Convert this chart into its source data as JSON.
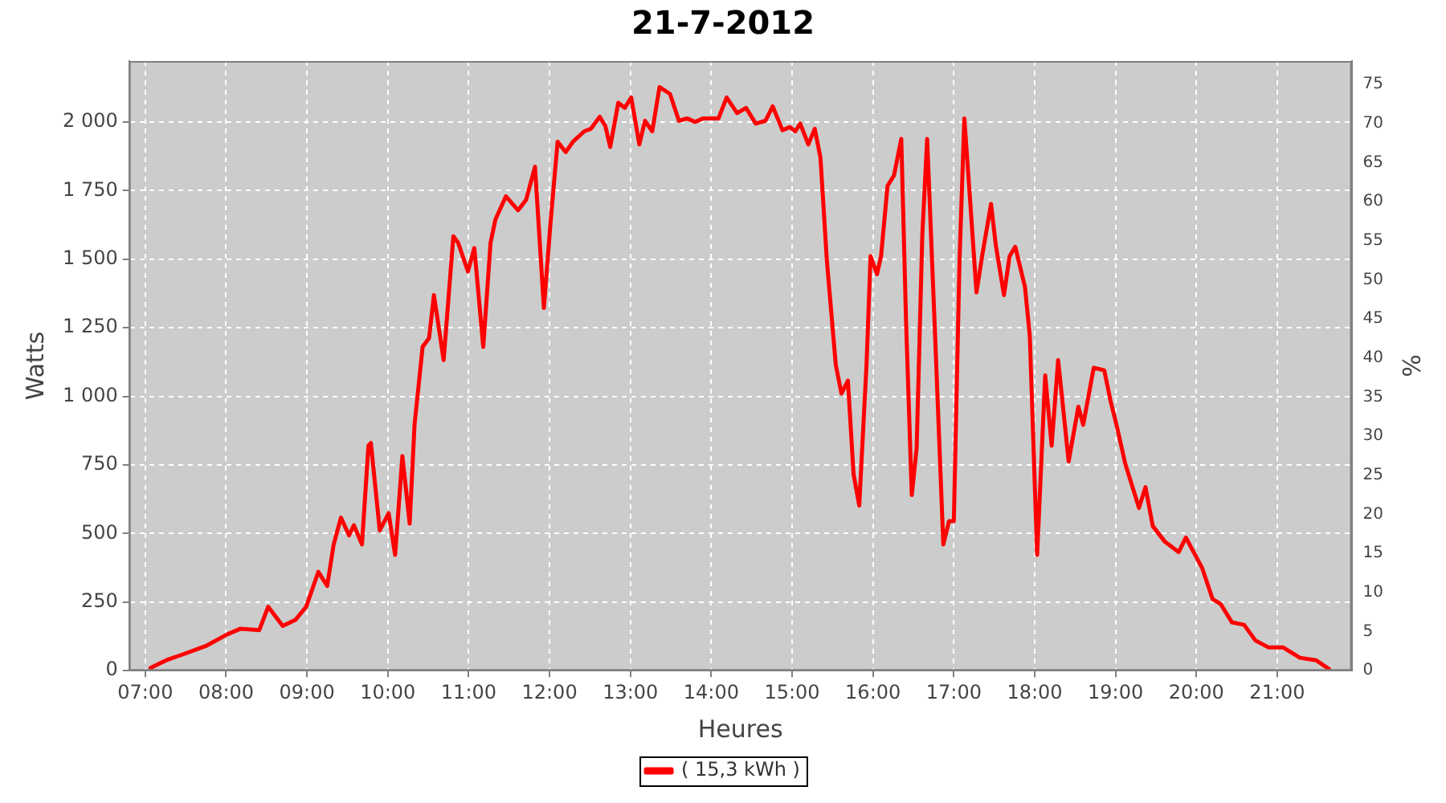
{
  "chart_data": {
    "type": "line",
    "title": "21-7-2012",
    "xlabel": "Heures",
    "ylabel": "Watts",
    "y2label": "%",
    "xlim": [
      6.8,
      21.92
    ],
    "xticks": [
      {
        "value": 7,
        "label": "07:00"
      },
      {
        "value": 8,
        "label": "08:00"
      },
      {
        "value": 9,
        "label": "09:00"
      },
      {
        "value": 10,
        "label": "10:00"
      },
      {
        "value": 11,
        "label": "11:00"
      },
      {
        "value": 12,
        "label": "12:00"
      },
      {
        "value": 13,
        "label": "13:00"
      },
      {
        "value": 14,
        "label": "14:00"
      },
      {
        "value": 15,
        "label": "15:00"
      },
      {
        "value": 16,
        "label": "16:00"
      },
      {
        "value": 17,
        "label": "17:00"
      },
      {
        "value": 18,
        "label": "18:00"
      },
      {
        "value": 19,
        "label": "19:00"
      },
      {
        "value": 20,
        "label": "20:00"
      },
      {
        "value": 21,
        "label": "21:00"
      }
    ],
    "ylim": [
      0,
      2222
    ],
    "yticks": [
      0,
      250,
      500,
      750,
      {
        "value": 1000,
        "label": "1 000"
      },
      {
        "value": 1250,
        "label": "1 250"
      },
      {
        "value": 1500,
        "label": "1 500"
      },
      {
        "value": 1750,
        "label": "1 750"
      },
      {
        "value": 2000,
        "label": "2 000"
      }
    ],
    "y2lim": [
      0,
      78
    ],
    "y2ticks": [
      0,
      5,
      10,
      15,
      20,
      25,
      30,
      35,
      40,
      45,
      50,
      55,
      60,
      65,
      70,
      75
    ],
    "grid": true,
    "legend": "bottom",
    "marker": "none",
    "line_style": "solid",
    "series": [
      {
        "name": "( 15,3 kWh )",
        "color": "#ff0000",
        "x": [
          7.065,
          7.26,
          7.49,
          7.75,
          8.01,
          8.18,
          8.41,
          8.52,
          8.7,
          8.86,
          8.99,
          9.14,
          9.25,
          9.33,
          9.42,
          9.52,
          9.58,
          9.68,
          9.76,
          9.79,
          9.9,
          10.01,
          10.09,
          10.18,
          10.27,
          10.33,
          10.43,
          10.51,
          10.57,
          10.69,
          10.81,
          10.87,
          10.99,
          11.07,
          11.18,
          11.27,
          11.33,
          11.46,
          11.61,
          11.71,
          11.82,
          11.93,
          12.01,
          12.06,
          12.1,
          12.2,
          12.29,
          12.43,
          12.51,
          12.62,
          12.69,
          12.75,
          12.85,
          12.93,
          13.01,
          13.11,
          13.18,
          13.27,
          13.36,
          13.49,
          13.6,
          13.7,
          13.8,
          13.9,
          14.09,
          14.19,
          14.32,
          14.43,
          14.55,
          14.67,
          14.76,
          14.88,
          14.97,
          15.04,
          15.1,
          15.2,
          15.28,
          15.35,
          15.43,
          15.54,
          15.61,
          15.69,
          15.76,
          15.83,
          15.92,
          15.97,
          16.05,
          16.1,
          16.18,
          16.26,
          16.35,
          16.41,
          16.48,
          16.54,
          16.61,
          16.67,
          16.77,
          16.87,
          16.94,
          17.0,
          17.07,
          17.13,
          17.2,
          17.28,
          17.35,
          17.46,
          17.52,
          17.62,
          17.69,
          17.76,
          17.88,
          17.94,
          18.03,
          18.13,
          18.21,
          18.29,
          18.42,
          18.54,
          18.6,
          18.73,
          18.86,
          18.94,
          19.02,
          19.12,
          19.29,
          19.37,
          19.46,
          19.61,
          19.78,
          19.87,
          20.07,
          20.2,
          20.3,
          20.44,
          20.59,
          20.73,
          20.89,
          21.07,
          21.28,
          21.48,
          21.64
        ],
        "values": [
          10,
          38,
          62,
          90,
          132,
          153,
          148,
          233,
          163,
          186,
          233,
          360,
          309,
          460,
          558,
          493,
          530,
          460,
          820,
          830,
          511,
          574,
          422,
          782,
          536,
          896,
          1180,
          1212,
          1369,
          1132,
          1583,
          1559,
          1455,
          1540,
          1180,
          1559,
          1644,
          1729,
          1678,
          1716,
          1837,
          1322,
          1625,
          1795,
          1928,
          1890,
          1928,
          1966,
          1975,
          2019,
          1985,
          1909,
          2070,
          2051,
          2089,
          1918,
          2004,
          1966,
          2127,
          2102,
          2004,
          2013,
          2000,
          2013,
          2013,
          2089,
          2032,
          2051,
          1994,
          2004,
          2057,
          1970,
          1981,
          1966,
          1994,
          1918,
          1975,
          1871,
          1493,
          1114,
          1010,
          1057,
          716,
          602,
          1114,
          1511,
          1445,
          1511,
          1767,
          1805,
          1938,
          1265,
          640,
          811,
          1587,
          1938,
          1208,
          460,
          545,
          545,
          1493,
          2013,
          1720,
          1379,
          1511,
          1701,
          1549,
          1369,
          1511,
          1545,
          1398,
          1218,
          422,
          1076,
          820,
          1132,
          763,
          962,
          896,
          1104,
          1095,
          981,
          886,
          754,
          593,
          669,
          527,
          470,
          432,
          485,
          375,
          261,
          243,
          176,
          167,
          110,
          85,
          85,
          47,
          38,
          6
        ]
      }
    ]
  }
}
